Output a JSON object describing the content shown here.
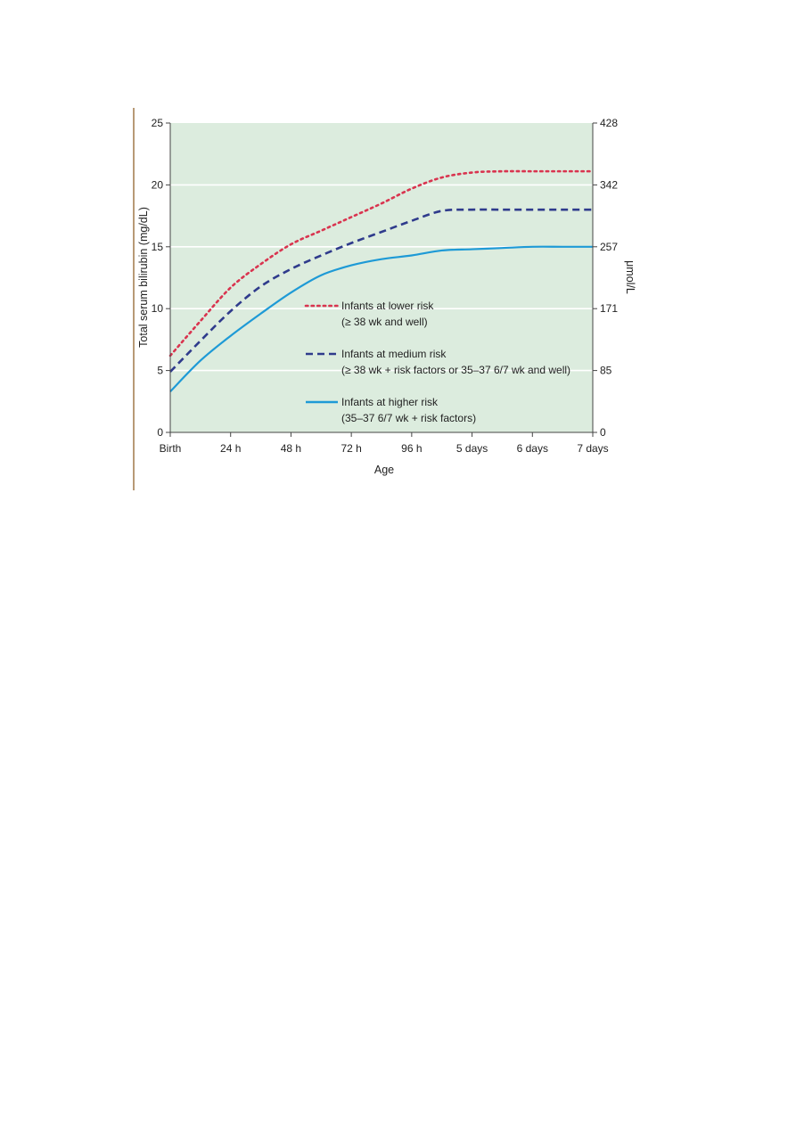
{
  "chart_data": {
    "type": "line",
    "title": "",
    "xlabel": "Age",
    "ylabel": "Total serum bilirubin (mg/dL)",
    "y2label": "μmol/L",
    "ylim": [
      0,
      25
    ],
    "y_ticks": [
      0,
      5,
      10,
      15,
      20,
      25
    ],
    "y2_ticks": [
      "0",
      "85",
      "171",
      "257",
      "342",
      "428"
    ],
    "x_ticks": [
      "Birth",
      "24 h",
      "48 h",
      "72 h",
      "96 h",
      "5 days",
      "6 days",
      "7 days"
    ],
    "x_units": "hours",
    "xlim": [
      0,
      168
    ],
    "grid": "horizontal",
    "legend": "center",
    "plot_background": "#dcecde",
    "series": [
      {
        "name": "Infants at lower risk",
        "detail": "(≥ 38 wk and well)",
        "color": "#d9344f",
        "style": "dotted",
        "x": [
          0,
          12,
          24,
          36,
          48,
          60,
          72,
          84,
          96,
          108,
          120,
          132,
          144,
          156,
          168
        ],
        "values": [
          6.2,
          9.0,
          11.7,
          13.6,
          15.2,
          16.3,
          17.4,
          18.5,
          19.7,
          20.6,
          21.0,
          21.1,
          21.1,
          21.1,
          21.1
        ]
      },
      {
        "name": "Infants at medium risk",
        "detail": "(≥ 38 wk + risk factors or 35–37 6/7 wk and well)",
        "color": "#2f3b8c",
        "style": "dashed",
        "x": [
          0,
          12,
          24,
          36,
          48,
          60,
          72,
          84,
          96,
          108,
          120,
          132,
          144,
          156,
          168
        ],
        "values": [
          4.9,
          7.4,
          9.8,
          11.8,
          13.2,
          14.3,
          15.3,
          16.2,
          17.1,
          17.9,
          18.0,
          18.0,
          18.0,
          18.0,
          18.0
        ]
      },
      {
        "name": "Infants at higher risk",
        "detail": "(35–37 6/7 wk + risk factors)",
        "color": "#1e9ad6",
        "style": "solid",
        "x": [
          0,
          12,
          24,
          36,
          48,
          60,
          72,
          84,
          96,
          108,
          120,
          132,
          144,
          156,
          168
        ],
        "values": [
          3.3,
          5.8,
          7.8,
          9.6,
          11.3,
          12.7,
          13.5,
          14.0,
          14.3,
          14.7,
          14.8,
          14.9,
          15.0,
          15.0,
          15.0
        ]
      }
    ]
  }
}
